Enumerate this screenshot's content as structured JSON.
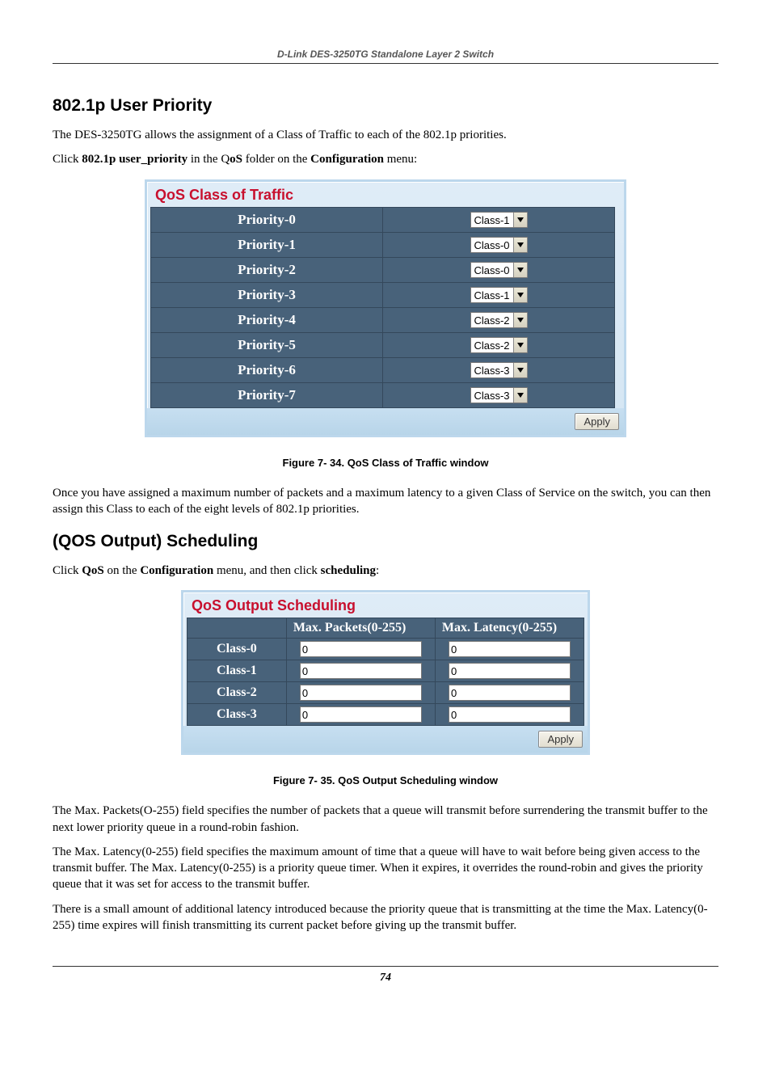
{
  "header": "D-Link DES-3250TG Standalone Layer 2 Switch",
  "section1": {
    "title": "802.1p User Priority",
    "p1": "The DES-3250TG allows the assignment of a Class of Traffic to each of the 802.1p priorities.",
    "p2_pre": "Click ",
    "p2_b1": "802.1p user_priority",
    "p2_mid1": " in the Q",
    "p2_b2": "oS",
    "p2_mid2": " folder on the ",
    "p2_b3": "Configuration",
    "p2_end": " menu:",
    "panel_title": "QoS Class of Traffic",
    "rows": [
      {
        "label": "Priority-0",
        "value": "Class-1"
      },
      {
        "label": "Priority-1",
        "value": "Class-0"
      },
      {
        "label": "Priority-2",
        "value": "Class-0"
      },
      {
        "label": "Priority-3",
        "value": "Class-1"
      },
      {
        "label": "Priority-4",
        "value": "Class-2"
      },
      {
        "label": "Priority-5",
        "value": "Class-2"
      },
      {
        "label": "Priority-6",
        "value": "Class-3"
      },
      {
        "label": "Priority-7",
        "value": "Class-3"
      }
    ],
    "apply": "Apply",
    "caption": "Figure 7- 34.  QoS Class of Traffic window",
    "p3": "Once you have assigned a maximum number of packets and a maximum latency to a given Class of Service on the switch, you can then assign this Class to each of the eight levels of 802.1p priorities."
  },
  "section2": {
    "title": "(QOS Output) Scheduling",
    "p1_pre": "Click ",
    "p1_b1": "QoS",
    "p1_mid1": " on the ",
    "p1_b2": "Configuration",
    "p1_mid2": " menu, and then click ",
    "p1_b3": "scheduling",
    "p1_end": ":",
    "panel_title": "QoS Output Scheduling",
    "col1": "Max. Packets(0-255)",
    "col2": "Max. Latency(0-255)",
    "rows": [
      {
        "label": "Class-0",
        "packets": "0",
        "latency": "0"
      },
      {
        "label": "Class-1",
        "packets": "0",
        "latency": "0"
      },
      {
        "label": "Class-2",
        "packets": "0",
        "latency": "0"
      },
      {
        "label": "Class-3",
        "packets": "0",
        "latency": "0"
      }
    ],
    "apply": "Apply",
    "caption": "Figure 7- 35.  QoS Output Scheduling window",
    "p2": "The Max. Packets(O-255) field specifies the number of packets that a queue will transmit before surrendering the transmit buffer to the next lower priority queue in a round-robin fashion.",
    "p3": "The Max. Latency(0-255) field specifies the maximum amount of time that a queue will have to wait before being given access to the transmit buffer. The Max. Latency(0-255) is a priority queue timer. When it expires, it overrides the round-robin and gives the priority queue that it was set for access to the transmit buffer.",
    "p4": "There is a small amount of additional latency introduced because the priority queue that is transmitting at the time the Max. Latency(0-255) time expires will finish transmitting its current packet before giving up the transmit buffer."
  },
  "page_number": "74",
  "colors": {
    "row_bg": "#48627a",
    "panel_title": "#c8102e",
    "panel_border": "#bcd7ec"
  }
}
